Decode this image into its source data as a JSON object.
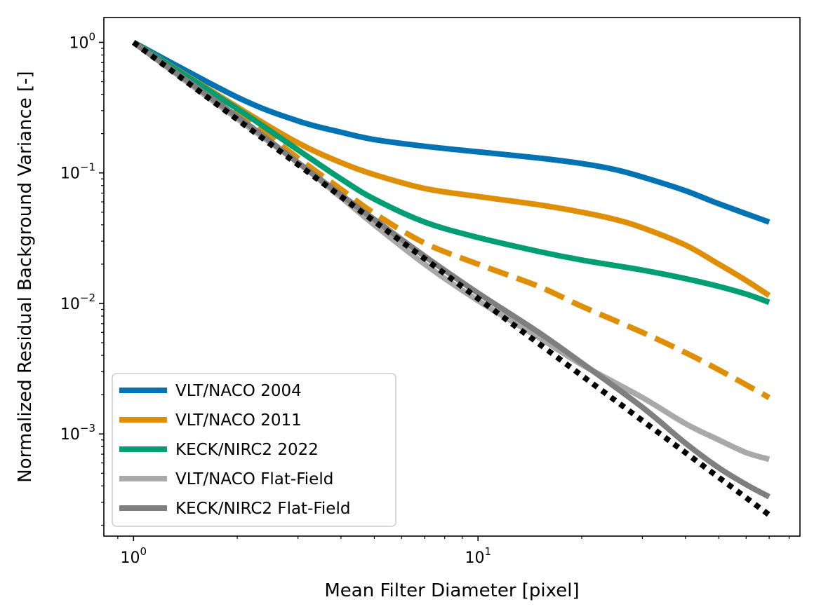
{
  "chart_data": {
    "type": "line",
    "title": "",
    "xlabel": "Mean Filter Diameter [pixel]",
    "ylabel": "Normalized Residual Background Variance [-]",
    "xscale": "log",
    "yscale": "log",
    "xlim": [
      0.82,
      86
    ],
    "ylim": [
      0.000165,
      1.55
    ],
    "x_major_ticks": [
      {
        "value": 1,
        "base": "10",
        "exp": "0"
      },
      {
        "value": 10,
        "base": "10",
        "exp": "1"
      }
    ],
    "y_major_ticks": [
      {
        "value": 0.001,
        "base": "10",
        "exp": "−3"
      },
      {
        "value": 0.01,
        "base": "10",
        "exp": "−2"
      },
      {
        "value": 0.1,
        "base": "10",
        "exp": "−1"
      },
      {
        "value": 1,
        "base": "10",
        "exp": "0"
      }
    ],
    "legend_position": "lower-left",
    "series": [
      {
        "name": "VLT/NACO 2004",
        "color": "#0173b2",
        "style": "solid",
        "in_legend": true,
        "points": [
          [
            1,
            1.0
          ],
          [
            2,
            0.38
          ],
          [
            3,
            0.25
          ],
          [
            4,
            0.205
          ],
          [
            5,
            0.18
          ],
          [
            7,
            0.16
          ],
          [
            10,
            0.145
          ],
          [
            15,
            0.13
          ],
          [
            20,
            0.118
          ],
          [
            25,
            0.106
          ],
          [
            30,
            0.093
          ],
          [
            40,
            0.073
          ],
          [
            50,
            0.058
          ],
          [
            70,
            0.042
          ]
        ]
      },
      {
        "name": "VLT/NACO 2011",
        "color": "#de8f05",
        "style": "solid",
        "in_legend": true,
        "points": [
          [
            1,
            1.0
          ],
          [
            2,
            0.32
          ],
          [
            3,
            0.17
          ],
          [
            4,
            0.12
          ],
          [
            5,
            0.097
          ],
          [
            7,
            0.076
          ],
          [
            10,
            0.066
          ],
          [
            15,
            0.057
          ],
          [
            20,
            0.05
          ],
          [
            25,
            0.044
          ],
          [
            30,
            0.038
          ],
          [
            40,
            0.028
          ],
          [
            50,
            0.02
          ],
          [
            60,
            0.015
          ],
          [
            70,
            0.0115
          ]
        ]
      },
      {
        "name": "VLT/NACO 2011 (dashed)",
        "color": "#de8f05",
        "style": "dashed",
        "in_legend": false,
        "points": [
          [
            1,
            1.0
          ],
          [
            2,
            0.29
          ],
          [
            3,
            0.13
          ],
          [
            4,
            0.075
          ],
          [
            5,
            0.049
          ],
          [
            7,
            0.029
          ],
          [
            10,
            0.02
          ],
          [
            15,
            0.0135
          ],
          [
            20,
            0.0095
          ],
          [
            30,
            0.006
          ],
          [
            40,
            0.0042
          ],
          [
            50,
            0.0031
          ],
          [
            70,
            0.0019
          ]
        ]
      },
      {
        "name": "KECK/NIRC2 2022",
        "color": "#029e73",
        "style": "solid",
        "in_legend": true,
        "points": [
          [
            1,
            1.0
          ],
          [
            2,
            0.31
          ],
          [
            3,
            0.15
          ],
          [
            4,
            0.09
          ],
          [
            5,
            0.063
          ],
          [
            7,
            0.042
          ],
          [
            10,
            0.032
          ],
          [
            15,
            0.025
          ],
          [
            20,
            0.0215
          ],
          [
            30,
            0.018
          ],
          [
            40,
            0.0155
          ],
          [
            50,
            0.0135
          ],
          [
            60,
            0.0118
          ],
          [
            70,
            0.0102
          ]
        ]
      },
      {
        "name": "VLT/NACO Flat-Field",
        "color": "#a9a9a9",
        "style": "solid",
        "in_legend": true,
        "points": [
          [
            1,
            1.0
          ],
          [
            2,
            0.26
          ],
          [
            3,
            0.12
          ],
          [
            4,
            0.065
          ],
          [
            5,
            0.04
          ],
          [
            7,
            0.02
          ],
          [
            10,
            0.0105
          ],
          [
            15,
            0.0055
          ],
          [
            20,
            0.0034
          ],
          [
            30,
            0.0019
          ],
          [
            40,
            0.0012
          ],
          [
            50,
            0.0009
          ],
          [
            60,
            0.00072
          ],
          [
            70,
            0.00064
          ]
        ]
      },
      {
        "name": "KECK/NIRC2 Flat-Field",
        "color": "#7f7f7f",
        "style": "solid",
        "in_legend": true,
        "points": [
          [
            1,
            1.0
          ],
          [
            2,
            0.27
          ],
          [
            3,
            0.12
          ],
          [
            4,
            0.068
          ],
          [
            5,
            0.044
          ],
          [
            7,
            0.023
          ],
          [
            10,
            0.012
          ],
          [
            15,
            0.006
          ],
          [
            20,
            0.0035
          ],
          [
            30,
            0.0016
          ],
          [
            40,
            0.00085
          ],
          [
            50,
            0.00055
          ],
          [
            60,
            0.00041
          ],
          [
            70,
            0.00033
          ]
        ]
      },
      {
        "name": "Reference (dotted)",
        "color": "#000000",
        "style": "dotted",
        "in_legend": false,
        "points": [
          [
            1,
            1.0
          ],
          [
            70,
            0.00024
          ]
        ]
      }
    ]
  }
}
